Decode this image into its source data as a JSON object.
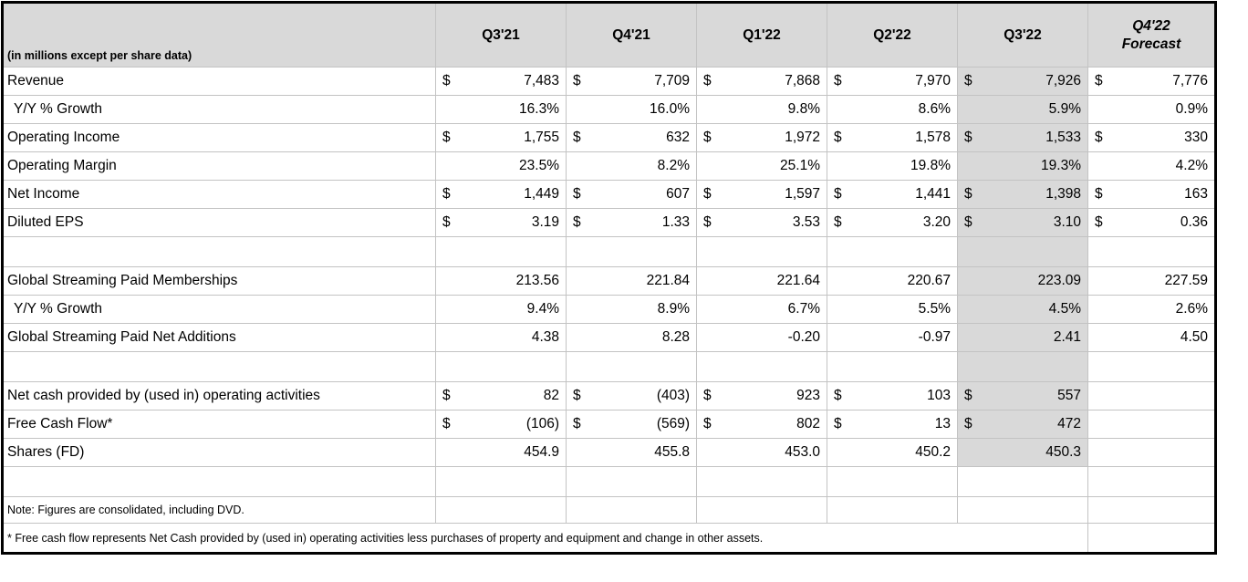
{
  "table": {
    "units_label": "(in millions except per share data)",
    "header_fill": "#d9d9d9",
    "columns": [
      {
        "label": "Q3'21"
      },
      {
        "label": "Q4'21"
      },
      {
        "label": "Q1'22"
      },
      {
        "label": "Q2'22"
      },
      {
        "label": "Q3'22"
      },
      {
        "label": "Q4'22",
        "sublabel": "Forecast",
        "emphasis": "italic"
      }
    ],
    "highlight": {
      "column": "Q3'22",
      "col_index": 4,
      "through_row": 13,
      "fill": "#d9d9d9"
    },
    "rows": [
      {
        "label": "Revenue",
        "format": "dollar",
        "values": [
          "7,483",
          "7,709",
          "7,868",
          "7,970",
          "7,926",
          "7,776"
        ]
      },
      {
        "label": "Y/Y % Growth",
        "indent": true,
        "format": "plain",
        "values": [
          "16.3%",
          "16.0%",
          "9.8%",
          "8.6%",
          "5.9%",
          "0.9%"
        ]
      },
      {
        "label": "Operating Income",
        "format": "dollar",
        "values": [
          "1,755",
          "632",
          "1,972",
          "1,578",
          "1,533",
          "330"
        ]
      },
      {
        "label": "Operating Margin",
        "format": "plain",
        "values": [
          "23.5%",
          "8.2%",
          "25.1%",
          "19.8%",
          "19.3%",
          "4.2%"
        ]
      },
      {
        "label": "Net Income",
        "format": "dollar",
        "values": [
          "1,449",
          "607",
          "1,597",
          "1,441",
          "1,398",
          "163"
        ]
      },
      {
        "label": "Diluted EPS",
        "format": "dollar",
        "values": [
          "3.19",
          "1.33",
          "3.53",
          "3.20",
          "3.10",
          "0.36"
        ]
      },
      {
        "type": "spacer"
      },
      {
        "label": "Global Streaming Paid Memberships",
        "format": "plain",
        "values": [
          "213.56",
          "221.84",
          "221.64",
          "220.67",
          "223.09",
          "227.59"
        ]
      },
      {
        "label": "Y/Y % Growth",
        "indent": true,
        "format": "plain",
        "values": [
          "9.4%",
          "8.9%",
          "6.7%",
          "5.5%",
          "4.5%",
          "2.6%"
        ]
      },
      {
        "label": "Global Streaming Paid Net Additions",
        "format": "plain",
        "values": [
          "4.38",
          "8.28",
          "-0.20",
          "-0.97",
          "2.41",
          "4.50"
        ]
      },
      {
        "type": "spacer"
      },
      {
        "label": "Net cash provided by (used in) operating activities",
        "format": "dollar",
        "values": [
          "82",
          "(403)",
          "923",
          "103",
          "557",
          ""
        ]
      },
      {
        "label": "Free Cash Flow*",
        "format": "dollar",
        "values": [
          "(106)",
          "(569)",
          "802",
          "13",
          "472",
          ""
        ]
      },
      {
        "label": "Shares (FD)",
        "format": "plain",
        "values": [
          "454.9",
          "455.8",
          "453.0",
          "450.2",
          "450.3",
          ""
        ]
      },
      {
        "type": "spacer"
      },
      {
        "type": "note",
        "label": "Note: Figures are consolidated, including DVD."
      },
      {
        "type": "footnote",
        "label": "* Free cash flow represents Net Cash provided by (used in) operating activities less purchases of property and equipment and change in other assets."
      }
    ]
  }
}
